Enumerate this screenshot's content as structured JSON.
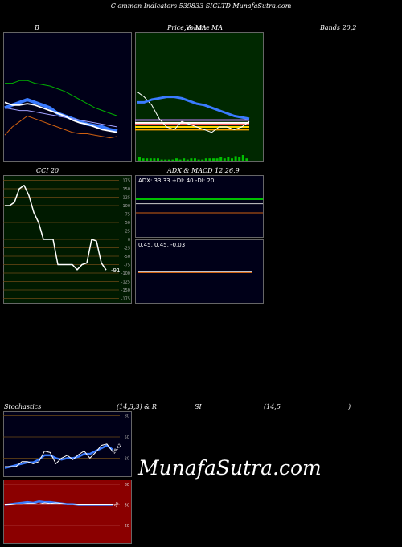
{
  "page": {
    "title": "C                ommon  Indicators 539833 SICLTD MunafaSutra.com",
    "watermark": "MunafaSutra.com"
  },
  "labels": {
    "bb_a": "B",
    "bb_b": "Bands 20,2",
    "pv_a": "Price,",
    "pv_b": "Volume",
    "pv_c": "MA",
    "pv_d": "& MA",
    "cci": "CCI 20",
    "adx_macd": "ADX  & MACD 12,26,9",
    "stoch_a": "Stochastics",
    "stoch_b": "(14,3,3) & R",
    "stoch_c": "SI",
    "stoch_d": "(14,5",
    "stoch_e": ")"
  },
  "adx": {
    "text": "ADX: 33.33  +DI: 40  -DI: 20"
  },
  "macd": {
    "text": "0.45,  0.45,  -0.03"
  },
  "cci_readout": "-91",
  "stoch_readout": "29.42",
  "rsi_readout": "50",
  "colors": {
    "bb_bg": "#000018",
    "pv_bg": "#002800",
    "cci_bg": "#001a00",
    "adx_bg": "#000018",
    "stoch_bg": "#000018",
    "rsi_bg": "#8b0000",
    "accent_blue": "#3a7bff",
    "green": "#00c000",
    "orange": "#d06010",
    "grid": "#6e4a16"
  },
  "chart_data": [
    {
      "type": "line",
      "name": "bollinger",
      "series": [
        {
          "values": [
            72,
            72,
            74,
            74,
            72,
            71,
            70,
            68,
            66,
            63,
            60,
            57,
            54,
            52,
            50,
            48
          ]
        },
        {
          "values": [
            58,
            56,
            56,
            57,
            56,
            54,
            52,
            50,
            48,
            45,
            43,
            42,
            40,
            38,
            37,
            36
          ]
        },
        {
          "values": [
            54,
            56,
            58,
            60,
            58,
            56,
            54,
            50,
            48,
            46,
            44,
            42,
            41,
            40,
            38,
            37
          ]
        },
        {
          "values": [
            54,
            53,
            52,
            52,
            51,
            50,
            49,
            48,
            47,
            46,
            45,
            44,
            43,
            42,
            41,
            40
          ]
        },
        {
          "values": [
            34,
            40,
            44,
            48,
            46,
            44,
            42,
            40,
            38,
            36,
            35,
            35,
            34,
            33,
            32,
            33
          ]
        }
      ]
    },
    {
      "type": "line",
      "name": "price_volume_ma",
      "series": [
        {
          "values": [
            48,
            48,
            50,
            51,
            52,
            52,
            51,
            49,
            47,
            46,
            44,
            42,
            40,
            38,
            37,
            36
          ]
        },
        {
          "values": [
            56,
            52,
            46,
            36,
            30,
            28,
            34,
            32,
            30,
            28,
            26,
            30,
            30,
            28,
            30,
            34
          ]
        },
        {
          "values": [
            32,
            32,
            32,
            32,
            32,
            32,
            32,
            32,
            32,
            32,
            32,
            32,
            32,
            32,
            32,
            32
          ]
        },
        {
          "values": [
            30,
            30,
            30,
            30,
            30,
            30,
            30,
            30,
            30,
            30,
            30,
            30,
            30,
            30,
            30,
            30
          ]
        },
        {
          "values": [
            35,
            35,
            35,
            35,
            35,
            35,
            35,
            35,
            35,
            35,
            35,
            35,
            35,
            35,
            35,
            35
          ]
        }
      ],
      "volume": [
        3,
        2,
        2,
        2,
        2,
        2,
        1,
        1,
        1,
        1,
        2,
        1,
        2,
        1,
        2,
        2,
        1,
        1,
        2,
        2,
        2,
        2,
        3,
        2,
        3,
        2,
        4,
        3,
        5,
        2
      ]
    },
    {
      "type": "line",
      "name": "cci",
      "ticks": [
        175,
        150,
        125,
        100,
        75,
        50,
        25,
        0,
        -25,
        -50,
        -75,
        -100,
        -125,
        -150,
        -175
      ],
      "values": [
        100,
        100,
        110,
        150,
        160,
        130,
        80,
        50,
        0,
        0,
        0,
        -75,
        -75,
        -75,
        -75,
        -90,
        -75,
        -70,
        0,
        -5,
        -70,
        -91
      ]
    },
    {
      "type": "line",
      "name": "adx_di",
      "series": [
        {
          "name": "ADX",
          "values": [
            33.33
          ]
        },
        {
          "name": "+DI",
          "values": [
            40
          ]
        },
        {
          "name": "-DI",
          "values": [
            20
          ]
        }
      ]
    },
    {
      "type": "line",
      "name": "stochastics",
      "ticks": [
        80,
        50,
        20
      ],
      "series": [
        {
          "values": [
            8,
            8,
            8,
            15,
            15,
            12,
            15,
            30,
            28,
            12,
            20,
            24,
            18,
            25,
            30,
            20,
            28,
            38,
            40,
            29.42
          ]
        },
        {
          "values": [
            6,
            8,
            10,
            12,
            14,
            14,
            18,
            24,
            24,
            20,
            18,
            20,
            20,
            22,
            26,
            26,
            30,
            34,
            38,
            32
          ]
        }
      ]
    },
    {
      "type": "line",
      "name": "rsi",
      "ticks": [
        80,
        50,
        20
      ],
      "series": [
        {
          "values": [
            50,
            50,
            51,
            51,
            52,
            52,
            51,
            53,
            52,
            53,
            52,
            51,
            51,
            50,
            50,
            50,
            50,
            50,
            50,
            50
          ]
        },
        {
          "values": [
            50,
            51,
            52,
            53,
            54,
            53,
            55,
            54,
            54,
            53,
            52,
            51,
            51,
            50,
            50,
            50,
            50,
            50,
            50,
            50
          ]
        }
      ]
    }
  ]
}
